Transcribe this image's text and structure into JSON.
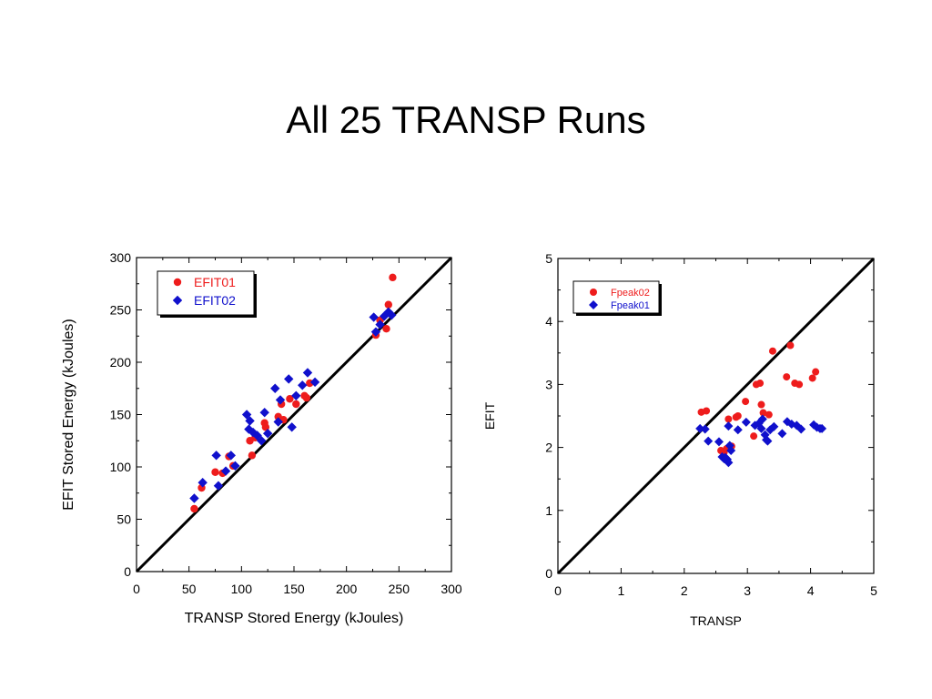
{
  "slide": {
    "title": "All 25 TRANSP Runs"
  },
  "colors": {
    "series1": "#ee1c1c",
    "series2": "#1010cc",
    "axis": "#000000",
    "identity_line": "#000000"
  },
  "chart_data": [
    {
      "type": "scatter",
      "title": "",
      "xlabel": "TRANSP Stored Energy (kJoules)",
      "ylabel": "EFIT Stored Energy (kJoules)",
      "xlim": [
        0,
        300
      ],
      "ylim": [
        0,
        300
      ],
      "xticks": [
        "0",
        "50",
        "100",
        "150",
        "200",
        "250",
        "300"
      ],
      "yticks": [
        "0",
        "50",
        "100",
        "150",
        "200",
        "250",
        "300"
      ],
      "grid": false,
      "identity_line": true,
      "legend_position": "top-left",
      "series": [
        {
          "name": "EFIT01",
          "marker": "circle",
          "color": "#ee1c1c",
          "points": [
            [
              55,
              60
            ],
            [
              62,
              80
            ],
            [
              75,
              95
            ],
            [
              82,
              94
            ],
            [
              88,
              110
            ],
            [
              92,
              101
            ],
            [
              108,
              125
            ],
            [
              110,
              111
            ],
            [
              113,
              128
            ],
            [
              122,
              142
            ],
            [
              123,
              138
            ],
            [
              135,
              148
            ],
            [
              138,
              160
            ],
            [
              140,
              145
            ],
            [
              146,
              165
            ],
            [
              152,
              160
            ],
            [
              160,
              168
            ],
            [
              162,
              166
            ],
            [
              165,
              180
            ],
            [
              228,
              226
            ],
            [
              232,
              240
            ],
            [
              238,
              232
            ],
            [
              240,
              255
            ],
            [
              244,
              281
            ]
          ]
        },
        {
          "name": "EFIT02",
          "marker": "diamond",
          "color": "#1010cc",
          "points": [
            [
              55,
              70
            ],
            [
              63,
              85
            ],
            [
              76,
              111
            ],
            [
              78,
              82
            ],
            [
              85,
              96
            ],
            [
              90,
              111
            ],
            [
              94,
              101
            ],
            [
              105,
              150
            ],
            [
              107,
              136
            ],
            [
              108,
              144
            ],
            [
              111,
              133
            ],
            [
              115,
              130
            ],
            [
              119,
              125
            ],
            [
              122,
              152
            ],
            [
              125,
              132
            ],
            [
              132,
              175
            ],
            [
              135,
              143
            ],
            [
              137,
              164
            ],
            [
              145,
              184
            ],
            [
              148,
              138
            ],
            [
              152,
              168
            ],
            [
              158,
              178
            ],
            [
              163,
              190
            ],
            [
              170,
              181
            ],
            [
              226,
              243
            ],
            [
              228,
              229
            ],
            [
              232,
              236
            ],
            [
              236,
              244
            ],
            [
              240,
              248
            ],
            [
              243,
              245
            ]
          ]
        }
      ]
    },
    {
      "type": "scatter",
      "title": "",
      "xlabel": "TRANSP",
      "ylabel": "EFIT",
      "xlim": [
        0,
        5
      ],
      "ylim": [
        0,
        5
      ],
      "xticks": [
        "0",
        "1",
        "2",
        "3",
        "4",
        "5"
      ],
      "yticks": [
        "0",
        "1",
        "2",
        "3",
        "4",
        "5"
      ],
      "grid": false,
      "identity_line": true,
      "legend_position": "top-left",
      "series": [
        {
          "name": "Fpeak02",
          "marker": "circle",
          "color": "#ee1c1c",
          "points": [
            [
              2.27,
              2.56
            ],
            [
              2.35,
              2.58
            ],
            [
              2.58,
              1.95
            ],
            [
              2.63,
              1.92
            ],
            [
              2.67,
              1.98
            ],
            [
              2.7,
              2.45
            ],
            [
              2.75,
              2.02
            ],
            [
              2.82,
              2.48
            ],
            [
              2.85,
              2.5
            ],
            [
              2.97,
              2.73
            ],
            [
              3.1,
              2.18
            ],
            [
              3.14,
              3.0
            ],
            [
              3.2,
              3.02
            ],
            [
              3.22,
              2.68
            ],
            [
              3.25,
              2.55
            ],
            [
              3.34,
              2.52
            ],
            [
              3.4,
              3.53
            ],
            [
              3.62,
              3.12
            ],
            [
              3.68,
              3.62
            ],
            [
              3.75,
              3.02
            ],
            [
              3.82,
              3.0
            ],
            [
              4.03,
              3.1
            ],
            [
              4.08,
              3.2
            ]
          ]
        },
        {
          "name": "Fpeak01",
          "marker": "diamond",
          "color": "#1010cc",
          "points": [
            [
              2.25,
              2.3
            ],
            [
              2.33,
              2.29
            ],
            [
              2.38,
              2.1
            ],
            [
              2.55,
              2.09
            ],
            [
              2.6,
              1.85
            ],
            [
              2.63,
              1.82
            ],
            [
              2.65,
              1.84
            ],
            [
              2.68,
              1.81
            ],
            [
              2.7,
              1.76
            ],
            [
              2.72,
              2.03
            ],
            [
              2.74,
              1.95
            ],
            [
              2.7,
              2.34
            ],
            [
              2.85,
              2.28
            ],
            [
              2.98,
              2.4
            ],
            [
              3.12,
              2.35
            ],
            [
              3.18,
              2.38
            ],
            [
              3.22,
              2.3
            ],
            [
              3.24,
              2.45
            ],
            [
              3.28,
              2.2
            ],
            [
              3.3,
              2.12
            ],
            [
              3.32,
              2.1
            ],
            [
              3.36,
              2.28
            ],
            [
              3.42,
              2.33
            ],
            [
              3.55,
              2.22
            ],
            [
              3.63,
              2.41
            ],
            [
              3.7,
              2.37
            ],
            [
              3.78,
              2.35
            ],
            [
              3.85,
              2.29
            ],
            [
              4.05,
              2.36
            ],
            [
              4.1,
              2.32
            ],
            [
              4.15,
              2.3
            ],
            [
              4.18,
              2.3
            ]
          ]
        }
      ]
    }
  ]
}
